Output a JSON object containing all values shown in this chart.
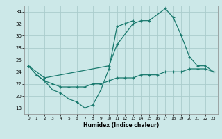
{
  "xlabel": "Humidex (Indice chaleur)",
  "xlim": [
    -0.5,
    23.5
  ],
  "ylim": [
    17.0,
    35.0
  ],
  "yticks": [
    18,
    20,
    22,
    24,
    26,
    28,
    30,
    32,
    34
  ],
  "xticks": [
    0,
    1,
    2,
    3,
    4,
    5,
    6,
    7,
    8,
    9,
    10,
    11,
    12,
    13,
    14,
    15,
    16,
    17,
    18,
    19,
    20,
    21,
    22,
    23
  ],
  "bg_color": "#cce8e8",
  "grid_color": "#aacccc",
  "line_color": "#1a7a6e",
  "line1_x": [
    0,
    1,
    2,
    3,
    4,
    5,
    6,
    7,
    8,
    9,
    10,
    11,
    12,
    13
  ],
  "line1_y": [
    25.0,
    23.5,
    22.5,
    21.0,
    20.5,
    19.5,
    19.0,
    18.0,
    18.5,
    21.0,
    24.5,
    31.5,
    32.0,
    32.5
  ],
  "line2_x": [
    0,
    2,
    10,
    11,
    13,
    14,
    15,
    17,
    18,
    19,
    20,
    21,
    22,
    23
  ],
  "line2_y": [
    25.0,
    23.0,
    25.0,
    28.5,
    32.0,
    32.5,
    32.5,
    34.5,
    33.0,
    30.0,
    26.5,
    25.0,
    25.0,
    24.0
  ],
  "line3_x": [
    0,
    1,
    2,
    3,
    4,
    5,
    6,
    7,
    8,
    9,
    10,
    11,
    12,
    13,
    14,
    15,
    16,
    17,
    18,
    19,
    20,
    21,
    22,
    23
  ],
  "line3_y": [
    25.0,
    23.5,
    22.5,
    22.0,
    21.5,
    21.5,
    21.5,
    21.5,
    22.0,
    22.0,
    22.5,
    23.0,
    23.0,
    23.0,
    23.5,
    23.5,
    23.5,
    24.0,
    24.0,
    24.0,
    24.5,
    24.5,
    24.5,
    24.0
  ]
}
